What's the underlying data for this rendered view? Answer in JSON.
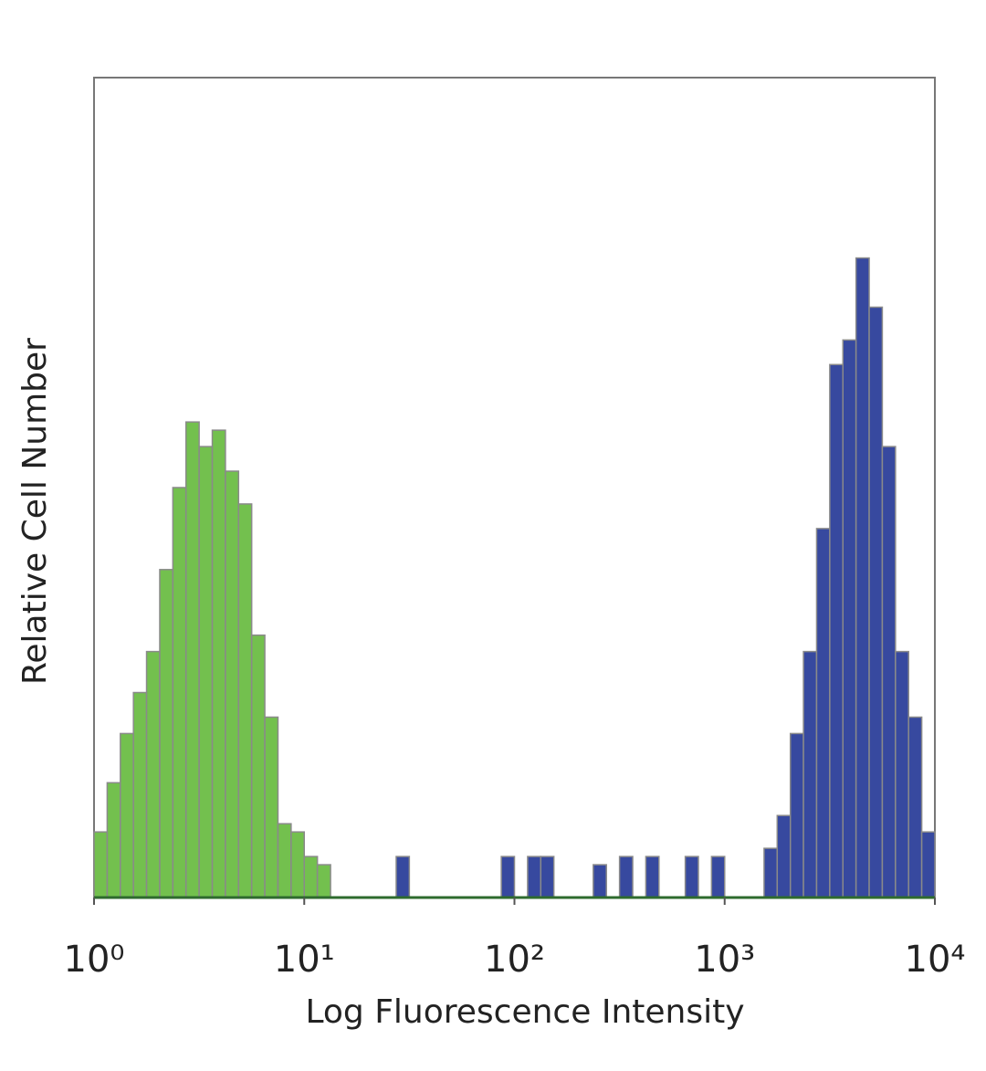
{
  "chart_data": {
    "type": "histogram",
    "xlabel": "Log Fluorescence Intensity",
    "ylabel": "Relative Cell Number",
    "xscale": "log",
    "xlim": [
      1,
      10000
    ],
    "ylim": [
      0,
      100
    ],
    "xticks": [
      {
        "value": 1,
        "label": "10⁰"
      },
      {
        "value": 10,
        "label": "10¹"
      },
      {
        "value": 100,
        "label": "10²"
      },
      {
        "value": 1000,
        "label": "10³"
      },
      {
        "value": 10000,
        "label": "10⁴"
      }
    ],
    "bins": [
      1,
      1.155,
      1.334,
      1.54,
      1.778,
      2.054,
      2.371,
      2.738,
      3.162,
      3.652,
      4.217,
      4.87,
      5.623,
      6.494,
      7.499,
      8.66,
      10,
      11.55,
      13.34,
      15.4,
      17.78,
      20.54,
      23.71,
      27.38,
      31.62,
      36.52,
      42.17,
      48.7,
      56.23,
      64.94,
      74.99,
      86.6,
      100,
      115.5,
      133.4,
      154.0,
      177.8,
      205.4,
      237.1,
      273.8,
      316.2,
      365.2,
      421.7,
      487.0,
      562.3,
      649.4,
      749.9,
      866.0,
      1000,
      1155,
      1334,
      1540,
      1778,
      2054,
      2371,
      2738,
      3162,
      3652,
      4217,
      4870,
      5623,
      6494,
      7499,
      8660,
      10000
    ],
    "series": [
      {
        "color": "#6cbd45",
        "values": [
          8,
          14,
          20,
          25,
          30,
          40,
          50,
          58,
          55,
          57,
          52,
          48,
          32,
          22,
          9,
          8,
          5,
          4,
          0,
          0,
          0,
          0,
          0,
          0,
          0,
          0,
          0,
          0,
          0,
          0,
          0,
          0,
          0,
          0,
          0,
          0,
          0,
          0,
          0,
          0,
          0,
          0,
          0,
          0,
          0,
          0,
          0,
          0,
          0,
          0,
          0,
          0,
          0,
          0,
          0,
          0,
          0,
          0,
          0,
          0,
          0,
          0,
          0,
          0
        ]
      },
      {
        "color": "#2c3f9a",
        "values": [
          0,
          0,
          0,
          0,
          0,
          0,
          0,
          0,
          0,
          0,
          0,
          0,
          0,
          0,
          0,
          0,
          0,
          0,
          0,
          0,
          0,
          0,
          0,
          5,
          0,
          0,
          0,
          0,
          0,
          0,
          0,
          5,
          0,
          5,
          5,
          0,
          0,
          0,
          4,
          0,
          5,
          0,
          5,
          0,
          0,
          5,
          0,
          5,
          0,
          0,
          0,
          6,
          10,
          20,
          30,
          45,
          65,
          68,
          78,
          72,
          55,
          30,
          22,
          8
        ]
      }
    ]
  }
}
